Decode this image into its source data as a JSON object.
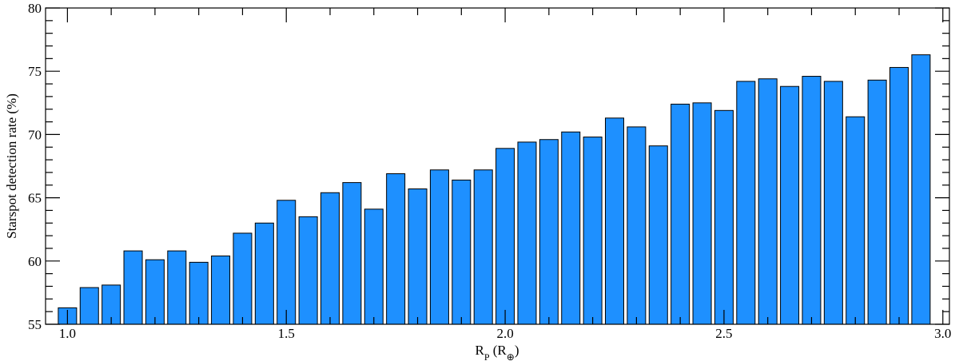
{
  "chart_data": {
    "type": "bar",
    "ylabel": "Starspot detection rate (%)",
    "xlabel": [
      {
        "text": "R"
      },
      {
        "text": "P",
        "sub": true
      },
      {
        "text": " (R"
      },
      {
        "text": "⊕",
        "sub": true
      },
      {
        "text": ")"
      }
    ],
    "x": [
      1.0,
      1.05,
      1.1,
      1.15,
      1.2,
      1.25,
      1.3,
      1.35,
      1.4,
      1.45,
      1.5,
      1.55,
      1.6,
      1.65,
      1.7,
      1.75,
      1.8,
      1.85,
      1.9,
      1.95,
      2.0,
      2.05,
      2.1,
      2.15,
      2.2,
      2.25,
      2.3,
      2.35,
      2.4,
      2.45,
      2.5,
      2.55,
      2.6,
      2.65,
      2.7,
      2.75,
      2.8,
      2.85,
      2.9,
      2.95
    ],
    "values": [
      56.3,
      57.9,
      58.1,
      60.8,
      60.1,
      60.8,
      59.9,
      60.4,
      62.2,
      63.0,
      64.8,
      63.5,
      65.4,
      66.2,
      64.1,
      66.9,
      65.7,
      67.2,
      66.4,
      67.2,
      68.9,
      69.4,
      69.6,
      70.2,
      69.8,
      71.3,
      70.6,
      69.1,
      72.4,
      72.5,
      71.9,
      74.2,
      74.4,
      73.8,
      74.6,
      74.2,
      71.4,
      74.3,
      75.3,
      76.3
    ],
    "bar_width": 0.042,
    "color": "#1e90ff",
    "xlim": [
      0.95,
      3.015
    ],
    "ylim": [
      55,
      80
    ],
    "xticks": [
      {
        "value": 1,
        "label": "1.0"
      },
      1.5,
      {
        "value": 2,
        "label": "2.0"
      },
      2.5,
      {
        "value": 3,
        "label": "3.0"
      }
    ],
    "yticks": [
      55,
      60,
      65,
      70,
      75,
      80
    ],
    "xminorticks": [
      1.1,
      1.2,
      1.3,
      1.4,
      1.6,
      1.7,
      1.8,
      1.9,
      2.1,
      2.2,
      2.3,
      2.4,
      2.6,
      2.7,
      2.8,
      2.9
    ],
    "yminorticks": [
      56,
      57,
      58,
      59,
      61,
      62,
      63,
      64,
      66,
      67,
      68,
      69,
      71,
      72,
      73,
      74,
      76,
      77,
      78,
      79
    ]
  }
}
